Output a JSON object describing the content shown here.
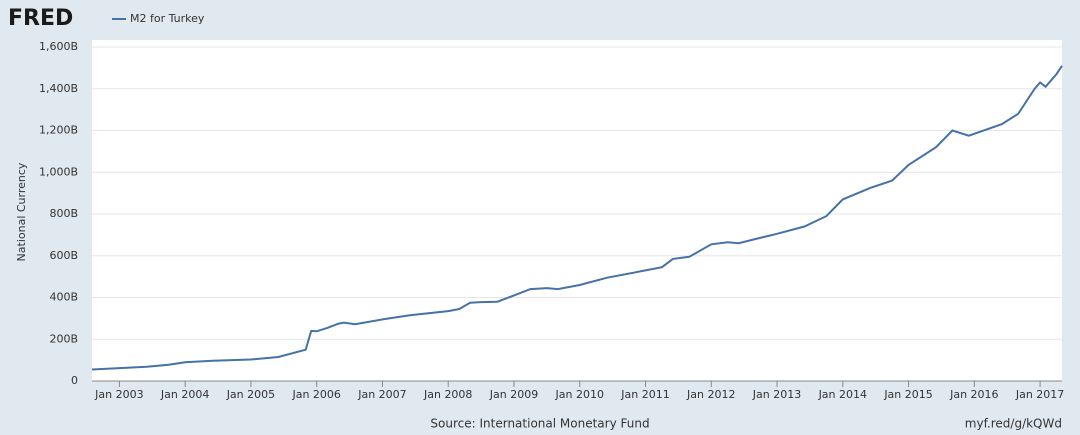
{
  "chart_data": {
    "type": "line",
    "logo": "FRED",
    "title": "M2 for Turkey",
    "ylabel": "National Currency",
    "source": "Source: International Monetary Fund",
    "url": "myf.red/g/kQWd",
    "color": "#4572a7",
    "grid": true,
    "x": [
      "2002-08",
      "2003-01",
      "2003-06",
      "2003-10",
      "2004-01",
      "2004-06",
      "2005-01",
      "2005-06",
      "2005-11",
      "2005-12",
      "2006-01",
      "2006-03",
      "2006-05",
      "2006-06",
      "2006-08",
      "2007-01",
      "2007-06",
      "2008-01",
      "2008-03",
      "2008-05",
      "2008-07",
      "2008-10",
      "2009-01",
      "2009-04",
      "2009-07",
      "2009-09",
      "2010-01",
      "2010-06",
      "2011-01",
      "2011-04",
      "2011-06",
      "2011-09",
      "2012-01",
      "2012-04",
      "2012-06",
      "2012-09",
      "2013-01",
      "2013-06",
      "2013-10",
      "2014-01",
      "2014-06",
      "2014-10",
      "2015-01",
      "2015-06",
      "2015-09",
      "2015-12",
      "2016-06",
      "2016-09",
      "2016-12",
      "2017-01",
      "2017-02",
      "2017-04",
      "2017-05"
    ],
    "series": [
      {
        "name": "M2 for Turkey",
        "values": [
          55,
          62,
          68,
          78,
          90,
          97,
          103,
          115,
          150,
          240,
          238,
          255,
          275,
          280,
          272,
          295,
          315,
          335,
          345,
          375,
          378,
          380,
          410,
          440,
          445,
          440,
          460,
          495,
          530,
          545,
          585,
          595,
          655,
          665,
          660,
          680,
          705,
          740,
          790,
          870,
          925,
          960,
          1035,
          1120,
          1200,
          1175,
          1230,
          1280,
          1400,
          1430,
          1410,
          1470,
          1510
        ]
      }
    ],
    "xlim": [
      "2002-08",
      "2017-05"
    ],
    "xticks": [
      {
        "value": "2003-01",
        "label": "Jan 2003"
      },
      {
        "value": "2004-01",
        "label": "Jan 2004"
      },
      {
        "value": "2005-01",
        "label": "Jan 2005"
      },
      {
        "value": "2006-01",
        "label": "Jan 2006"
      },
      {
        "value": "2007-01",
        "label": "Jan 2007"
      },
      {
        "value": "2008-01",
        "label": "Jan 2008"
      },
      {
        "value": "2009-01",
        "label": "Jan 2009"
      },
      {
        "value": "2010-01",
        "label": "Jan 2010"
      },
      {
        "value": "2011-01",
        "label": "Jan 2011"
      },
      {
        "value": "2012-01",
        "label": "Jan 2012"
      },
      {
        "value": "2013-01",
        "label": "Jan 2013"
      },
      {
        "value": "2014-01",
        "label": "Jan 2014"
      },
      {
        "value": "2015-01",
        "label": "Jan 2015"
      },
      {
        "value": "2016-01",
        "label": "Jan 2016"
      },
      {
        "value": "2017-01",
        "label": "Jan 2017"
      }
    ],
    "ylim": [
      0,
      1600
    ],
    "yticks": [
      0,
      {
        "value": 200,
        "label": "200B"
      },
      {
        "value": 400,
        "label": "400B"
      },
      {
        "value": 600,
        "label": "600B"
      },
      {
        "value": 800,
        "label": "800B"
      },
      {
        "value": 1000,
        "label": "1,000B"
      },
      {
        "value": 1200,
        "label": "1,200B"
      },
      {
        "value": 1400,
        "label": "1,400B"
      },
      {
        "value": 1600,
        "label": "1,600B"
      }
    ]
  }
}
